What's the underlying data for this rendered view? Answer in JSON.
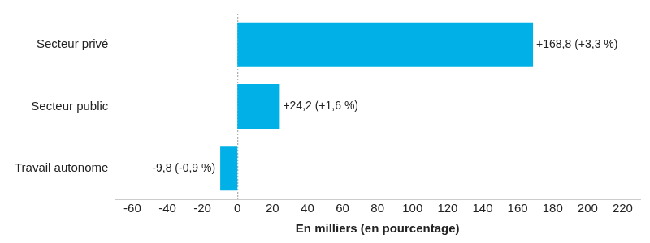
{
  "chart_data": {
    "type": "bar",
    "orientation": "horizontal",
    "categories": [
      "Secteur privé",
      "Secteur public",
      "Travail autonome"
    ],
    "values": [
      168.8,
      24.2,
      -9.8
    ],
    "value_labels": [
      "+168,8 (+3,3 %)",
      "+24,2 (+1,6 %)",
      "-9,8 (-0,9 %)"
    ],
    "data_labels": true,
    "color": "#00b0e6",
    "xlabel": "En milliers (en pourcentage)",
    "xlim": [
      -70,
      230
    ],
    "xticks": [
      -60,
      -40,
      -20,
      0,
      20,
      40,
      60,
      80,
      100,
      120,
      140,
      160,
      180,
      200,
      220
    ],
    "grid": false
  }
}
